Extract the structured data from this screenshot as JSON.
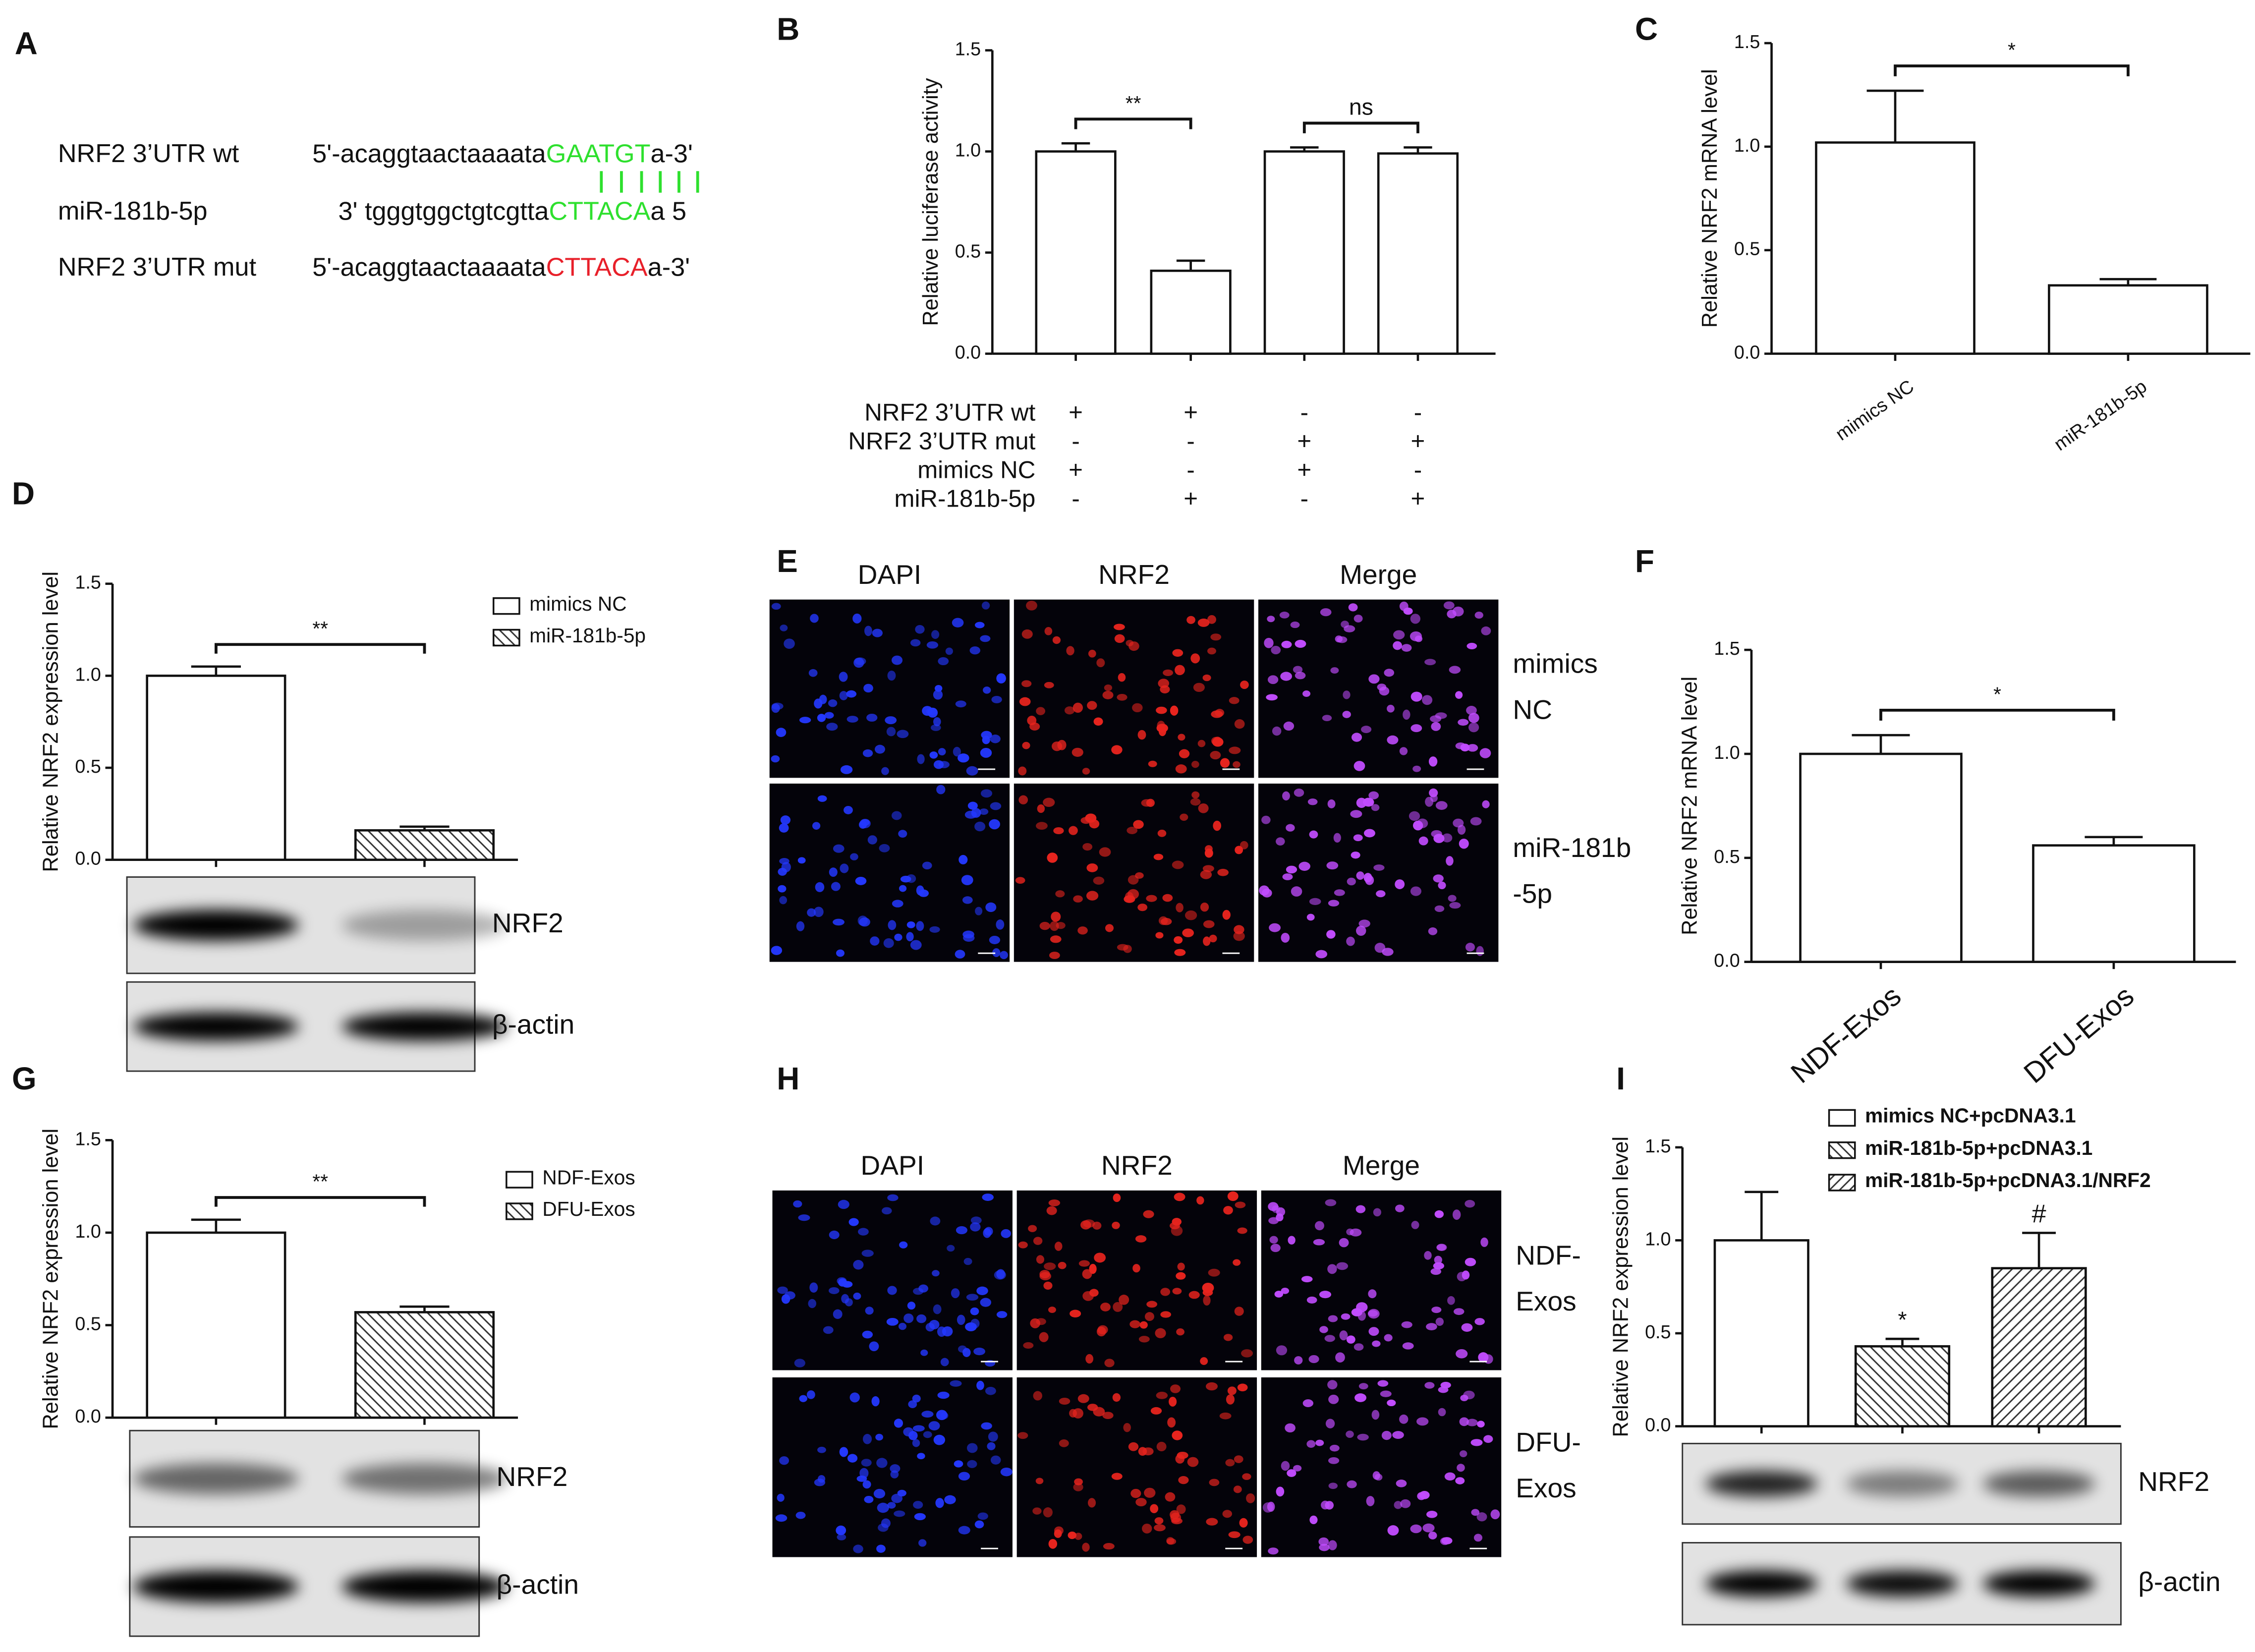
{
  "panel_labels": [
    "A",
    "B",
    "C",
    "D",
    "E",
    "F",
    "G",
    "H",
    "I"
  ],
  "sequences": [
    {
      "name": "NRF2 3’UTR wt",
      "prefix": "5'-acaggtaactaaaata",
      "site": "GAATGT",
      "suffix": "a-3'",
      "color": "#2ee02e"
    },
    {
      "name": "miR-181b-5p",
      "prefix": "3' tgggtggctgtcgtta",
      "site": "CTTACA",
      "suffix": "a 5",
      "color": "#2ee02e"
    },
    {
      "name": "NRF2 3’UTR  mut",
      "prefix": "5'-acaggtaactaaaata",
      "site": "CTTACA",
      "suffix": "a-3'",
      "color": "#e8202a"
    }
  ],
  "image_panels": [
    {
      "columns": [
        "DAPI",
        "NRF2",
        "Merge"
      ],
      "rows": [
        [
          "mimics",
          "NC"
        ],
        [
          "miR-181b",
          "-5p"
        ]
      ]
    },
    {
      "columns": [
        "DAPI",
        "NRF2",
        "Merge"
      ],
      "rows": [
        [
          "NDF-",
          "Exos"
        ],
        [
          "DFU-",
          "Exos"
        ]
      ]
    }
  ],
  "chart_data": [
    {
      "type": "bar",
      "ylabel": "Relative luciferase activity",
      "categories": [
        null,
        null,
        null,
        null
      ],
      "values": [
        1.0,
        0.41,
        1.0,
        0.99
      ],
      "errors": [
        0.04,
        0.05,
        0.02,
        0.03
      ],
      "color": "#ffffff",
      "ylim": [
        0,
        1.5
      ],
      "yticks": [
        {
          "value": 0,
          "label": "0.0"
        },
        0.5,
        {
          "value": 1,
          "label": "1.0"
        },
        1.5
      ],
      "significance": [
        {
          "between": [
            0,
            1
          ],
          "label": "**"
        },
        {
          "between": [
            2,
            3
          ],
          "label": "ns"
        }
      ],
      "conditions": [
        {
          "label": "NRF2  3’UTR wt",
          "signs": [
            "+",
            "+",
            "-",
            "-"
          ]
        },
        {
          "label": "NRF2  3’UTR mut",
          "signs": [
            "-",
            "-",
            "+",
            "+"
          ]
        },
        {
          "label": "mimics NC",
          "signs": [
            "+",
            "-",
            "+",
            "-"
          ]
        },
        {
          "label": "miR-181b-5p",
          "signs": [
            "-",
            "+",
            "-",
            "+"
          ]
        }
      ]
    },
    {
      "type": "bar",
      "ylabel": "Relative NRF2 mRNA level",
      "categories": [
        "mimics NC",
        "miR-181b-5p"
      ],
      "values": [
        1.02,
        0.33
      ],
      "errors": [
        0.25,
        0.03
      ],
      "color": "#ffffff",
      "ylim": [
        0,
        1.5
      ],
      "yticks": [
        {
          "value": 0,
          "label": "0.0"
        },
        0.5,
        {
          "value": 1,
          "label": "1.0"
        },
        1.5
      ],
      "significance": [
        {
          "between": [
            0,
            1
          ],
          "label": "*"
        }
      ]
    },
    {
      "type": "bar",
      "ylabel": "Relative NRF2 expression level",
      "categories": [
        null,
        null
      ],
      "series": [
        {
          "name": "mimics NC",
          "color": "#ffffff",
          "values": [
            1.0,
            null
          ],
          "errors": [
            0.05,
            null
          ]
        },
        {
          "name": "miR-181b-5p",
          "color": "#ffffff",
          "hatch": "back",
          "values": [
            null,
            0.16
          ],
          "errors": [
            null,
            0.02
          ]
        }
      ],
      "ylim": [
        0,
        1.5
      ],
      "yticks": [
        {
          "value": 0,
          "label": "0.0"
        },
        0.5,
        {
          "value": 1,
          "label": "1.0"
        },
        1.5
      ],
      "significance": [
        {
          "between": [
            0,
            1
          ],
          "label": "**"
        }
      ],
      "blots": [
        "NRF2",
        "β-actin"
      ]
    },
    {
      "type": "bar",
      "ylabel": "Relative NRF2 mRNA level",
      "categories": [
        "NDF-Exos",
        "DFU-Exos"
      ],
      "values": [
        1.0,
        0.56
      ],
      "errors": [
        0.09,
        0.04
      ],
      "color": "#ffffff",
      "ylim": [
        0,
        1.5
      ],
      "yticks": [
        {
          "value": 0,
          "label": "0.0"
        },
        0.5,
        {
          "value": 1,
          "label": "1.0"
        },
        1.5
      ],
      "significance": [
        {
          "between": [
            0,
            1
          ],
          "label": "*"
        }
      ]
    },
    {
      "type": "bar",
      "ylabel": "Relative NRF2 expression level",
      "categories": [
        null,
        null
      ],
      "series": [
        {
          "name": "NDF-Exos",
          "color": "#ffffff",
          "values": [
            1.0,
            null
          ],
          "errors": [
            0.07,
            null
          ]
        },
        {
          "name": "DFU-Exos",
          "color": "#ffffff",
          "hatch": "back",
          "values": [
            null,
            0.57
          ],
          "errors": [
            null,
            0.03
          ]
        }
      ],
      "ylim": [
        0,
        1.5
      ],
      "yticks": [
        {
          "value": 0,
          "label": "0.0"
        },
        0.5,
        {
          "value": 1,
          "label": "1.0"
        },
        1.5
      ],
      "significance": [
        {
          "between": [
            0,
            1
          ],
          "label": "**"
        }
      ],
      "blots": [
        "NRF2",
        "β-actin"
      ]
    },
    {
      "type": "bar",
      "ylabel": "Relative NRF2 expression level",
      "categories": [
        null,
        null,
        null
      ],
      "series": [
        {
          "name": "mimics NC+pcDNA3.1",
          "color": "#ffffff",
          "values": [
            1.0,
            null,
            null
          ],
          "errors": [
            0.26,
            null,
            null
          ]
        },
        {
          "name": "miR-181b-5p+pcDNA3.1",
          "color": "#ffffff",
          "hatch": "back",
          "values": [
            null,
            0.43,
            null
          ],
          "errors": [
            null,
            0.04,
            null
          ],
          "annotation": "*"
        },
        {
          "name": "miR-181b-5p+pcDNA3.1/NRF2",
          "color": "#ffffff",
          "hatch": "forward",
          "values": [
            null,
            null,
            0.85
          ],
          "errors": [
            null,
            null,
            0.19
          ],
          "annotation": "#"
        }
      ],
      "ylim": [
        0,
        1.5
      ],
      "yticks": [
        {
          "value": 0,
          "label": "0.0"
        },
        0.5,
        {
          "value": 1,
          "label": "1.0"
        },
        1.5
      ],
      "blots": [
        "NRF2",
        "β-actin"
      ]
    }
  ]
}
